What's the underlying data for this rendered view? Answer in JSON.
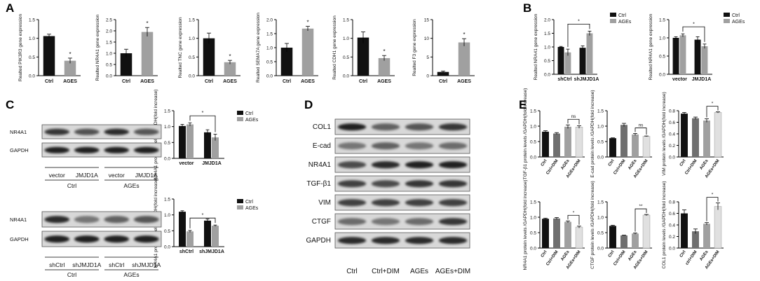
{
  "figure": {
    "panel_labels": [
      "A",
      "B",
      "C",
      "D",
      "E"
    ],
    "colors": {
      "ctrl": "#111111",
      "ages": "#a0a0a0",
      "ctrl_dim": "#6f6f6f",
      "ages_dim": "#e0e0e0"
    }
  },
  "chart_data": [
    {
      "id": "A1",
      "panel": "A",
      "type": "bar",
      "categories": [
        "Ctrl",
        "AGES"
      ],
      "values": [
        1.06,
        0.4
      ],
      "errors": [
        0.05,
        0.07
      ],
      "colors": [
        "#111111",
        "#a0a0a0"
      ],
      "ylabel": "Realted PIK3R3 gene expression",
      "ylim": [
        0,
        1.5
      ],
      "yticks": [
        0.0,
        0.5,
        1.0,
        1.5
      ],
      "sig": [
        {
          "at": 1,
          "text": "*"
        }
      ]
    },
    {
      "id": "A2",
      "panel": "A",
      "type": "bar",
      "categories": [
        "Ctrl",
        "AGES"
      ],
      "values": [
        1.0,
        1.95
      ],
      "errors": [
        0.18,
        0.2
      ],
      "colors": [
        "#111111",
        "#a0a0a0"
      ],
      "ylabel": "Realted NR4A1 gene expression",
      "ylim": [
        0,
        2.5
      ],
      "yticks": [
        0.0,
        0.5,
        1.0,
        1.5,
        2.0,
        2.5
      ],
      "sig": [
        {
          "at": 1,
          "text": "*"
        }
      ]
    },
    {
      "id": "A3",
      "panel": "A",
      "type": "bar",
      "categories": [
        "Ctrl",
        "AGES"
      ],
      "values": [
        1.0,
        0.36
      ],
      "errors": [
        0.14,
        0.05
      ],
      "colors": [
        "#111111",
        "#a0a0a0"
      ],
      "ylabel": "Realted TNC gene expression",
      "ylim": [
        0,
        1.5
      ],
      "yticks": [
        0.0,
        0.5,
        1.0,
        1.5
      ],
      "sig": [
        {
          "at": 1,
          "text": "*"
        }
      ]
    },
    {
      "id": "A4",
      "panel": "A",
      "type": "bar",
      "categories": [
        "Ctrl",
        "AGES"
      ],
      "values": [
        1.0,
        1.68
      ],
      "errors": [
        0.15,
        0.08
      ],
      "colors": [
        "#111111",
        "#a0a0a0"
      ],
      "ylabel": "Realted SEMA7A gene expression",
      "ylim": [
        0,
        2.0
      ],
      "yticks": [
        0.0,
        0.5,
        1.0,
        1.5,
        2.0
      ],
      "sig": [
        {
          "at": 1,
          "text": "*"
        }
      ]
    },
    {
      "id": "A5",
      "panel": "A",
      "type": "bar",
      "categories": [
        "Ctrl",
        "AGES"
      ],
      "values": [
        1.02,
        0.47
      ],
      "errors": [
        0.15,
        0.07
      ],
      "colors": [
        "#111111",
        "#a0a0a0"
      ],
      "ylabel": "Realted CDH1 gene expression",
      "ylim": [
        0,
        1.5
      ],
      "yticks": [
        0.0,
        0.5,
        1.0,
        1.5
      ],
      "sig": [
        {
          "at": 1,
          "text": "*"
        }
      ]
    },
    {
      "id": "A6",
      "panel": "A",
      "type": "bar",
      "categories": [
        "Ctrl",
        "AGES"
      ],
      "values": [
        1.0,
        8.9
      ],
      "errors": [
        0.25,
        1.0
      ],
      "colors": [
        "#111111",
        "#a0a0a0"
      ],
      "ylabel": "Realted F3 gene expression",
      "ylim": [
        0,
        15
      ],
      "yticks": [
        0,
        5,
        10,
        15
      ],
      "sig": [
        {
          "at": 1,
          "text": "*"
        }
      ]
    },
    {
      "id": "B1",
      "panel": "B",
      "type": "bar",
      "categories": [
        "shCtrl",
        "shJMJD1A"
      ],
      "series": [
        {
          "name": "Ctrl",
          "values": [
            1.0,
            0.97
          ],
          "errors": [
            0.02,
            0.07
          ]
        },
        {
          "name": "AGEs",
          "values": [
            0.8,
            1.5
          ],
          "errors": [
            0.12,
            0.08
          ]
        }
      ],
      "ylabel": "Realted NRA41 gene expression",
      "ylim": [
        0,
        2.0
      ],
      "yticks": [
        0.0,
        0.5,
        1.0,
        1.5,
        2.0
      ],
      "legend": [
        "Ctrl",
        "AGEs"
      ],
      "brackets": [
        {
          "from": [
            0,
            1
          ],
          "to": [
            1,
            1
          ],
          "text": "*"
        }
      ]
    },
    {
      "id": "B2",
      "panel": "B",
      "type": "bar",
      "categories": [
        "vector",
        "JMJD1A"
      ],
      "series": [
        {
          "name": "Ctrl",
          "values": [
            1.0,
            0.95
          ],
          "errors": [
            0.03,
            0.08
          ]
        },
        {
          "name": "AGEs",
          "values": [
            1.07,
            0.77
          ],
          "errors": [
            0.04,
            0.06
          ]
        }
      ],
      "ylabel": "Realted NR4A1 gene expression",
      "ylim": [
        0,
        1.5
      ],
      "yticks": [
        0.0,
        0.5,
        1.0,
        1.5
      ],
      "legend": [
        "Ctrl",
        "AGEs"
      ],
      "brackets": [
        {
          "from": [
            0,
            1
          ],
          "to": [
            1,
            1
          ],
          "text": "*"
        }
      ]
    },
    {
      "id": "C1",
      "panel": "C",
      "type": "bar",
      "categories": [
        "vector",
        "JMJD1A"
      ],
      "series": [
        {
          "name": "Ctrl",
          "values": [
            1.02,
            0.82
          ],
          "errors": [
            0.05,
            0.08
          ]
        },
        {
          "name": "AGEs",
          "values": [
            1.07,
            0.66
          ],
          "errors": [
            0.05,
            0.1
          ]
        }
      ],
      "ylabel": "NR4A1 protein levels /GAPDH(fold increase)",
      "ylim": [
        0,
        1.5
      ],
      "yticks": [
        0.0,
        0.5,
        1.0,
        1.5
      ],
      "legend": [
        "Ctrl",
        "AGEs"
      ],
      "brackets": [
        {
          "from": [
            0,
            1
          ],
          "to": [
            1,
            1
          ],
          "text": "*"
        }
      ]
    },
    {
      "id": "C2",
      "panel": "C",
      "type": "bar",
      "categories": [
        "shCtrl",
        "shJMJD1A"
      ],
      "series": [
        {
          "name": "Ctrl",
          "values": [
            1.1,
            0.82
          ],
          "errors": [
            0.03,
            0.05
          ]
        },
        {
          "name": "AGEs",
          "values": [
            0.48,
            0.66
          ],
          "errors": [
            0.03,
            0.02
          ]
        }
      ],
      "ylabel": "NR4A1 protein levels /GAPDH(fold increase)",
      "ylim": [
        0,
        1.5
      ],
      "yticks": [
        0.0,
        0.5,
        1.0,
        1.5
      ],
      "legend": [
        "Ctrl",
        "AGEs"
      ],
      "brackets": [
        {
          "from": [
            0,
            1
          ],
          "to": [
            1,
            1
          ],
          "text": "*"
        }
      ]
    },
    {
      "id": "E1",
      "panel": "E",
      "type": "bar",
      "categories": [
        "Ctrl",
        "Ctrl+DIM",
        "AGEs",
        "AGEs+DIM"
      ],
      "values": [
        0.82,
        0.76,
        0.98,
        0.97
      ],
      "errors": [
        0.03,
        0.03,
        0.06,
        0.04
      ],
      "colors": [
        "#111111",
        "#6f6f6f",
        "#a0a0a0",
        "#e0e0e0"
      ],
      "ylabel": "TGF-β1 protein levels /GAPDH(fold increase)",
      "ylim": [
        0,
        1.5
      ],
      "yticks": [
        0.0,
        0.5,
        1.0,
        1.5
      ],
      "brackets": [
        {
          "from": 2,
          "to": 3,
          "text": "ns"
        }
      ]
    },
    {
      "id": "E2",
      "panel": "E",
      "type": "bar",
      "categories": [
        "Ctrl",
        "Ctrl+DIM",
        "AGEs",
        "AGEs+DIM"
      ],
      "values": [
        0.61,
        1.04,
        0.73,
        0.67
      ],
      "errors": [
        0.01,
        0.05,
        0.03,
        0.01
      ],
      "colors": [
        "#111111",
        "#6f6f6f",
        "#a0a0a0",
        "#e0e0e0"
      ],
      "ylabel": "E-cad protein levels /GAPDH(fold increase)",
      "ylim": [
        0,
        1.5
      ],
      "yticks": [
        0.0,
        0.5,
        1.0,
        1.5
      ],
      "brackets": [
        {
          "from": 2,
          "to": 3,
          "text": "ns"
        }
      ]
    },
    {
      "id": "E3",
      "panel": "E",
      "type": "bar",
      "categories": [
        "Ctrl",
        "Ctrl+DIM",
        "AGEs",
        "AGEs+DIM"
      ],
      "values": [
        0.75,
        0.67,
        0.63,
        0.77
      ],
      "errors": [
        0.02,
        0.02,
        0.03,
        0.01
      ],
      "colors": [
        "#111111",
        "#6f6f6f",
        "#a0a0a0",
        "#e0e0e0"
      ],
      "ylabel": "VIM protein levels /GAPDH(fold increase)",
      "ylim": [
        0,
        0.8
      ],
      "yticks": [
        0.0,
        0.2,
        0.4,
        0.6,
        0.8
      ],
      "brackets": [
        {
          "from": 2,
          "to": 3,
          "text": "*"
        }
      ]
    },
    {
      "id": "E4",
      "panel": "E",
      "type": "bar",
      "categories": [
        "Ctrl",
        "Ctrl+DIM",
        "AGEs",
        "AGEs+DIM"
      ],
      "values": [
        0.95,
        0.96,
        0.85,
        0.68
      ],
      "errors": [
        0.02,
        0.03,
        0.03,
        0.03
      ],
      "colors": [
        "#111111",
        "#6f6f6f",
        "#a0a0a0",
        "#e0e0e0"
      ],
      "ylabel": "NR4A1 protein levels /GAPDH(fold increase)",
      "ylim": [
        0,
        1.5
      ],
      "yticks": [
        0.0,
        0.5,
        1.0,
        1.5
      ],
      "brackets": [
        {
          "from": 2,
          "to": 3,
          "text": "*"
        }
      ]
    },
    {
      "id": "E5",
      "panel": "E",
      "type": "bar",
      "categories": [
        "Ctrl",
        "Ctrl+DIM",
        "AGEs",
        "AGEs+DIM"
      ],
      "values": [
        0.72,
        0.41,
        0.47,
        1.07
      ],
      "errors": [
        0.02,
        0.01,
        0.02,
        0.02
      ],
      "colors": [
        "#111111",
        "#6f6f6f",
        "#a0a0a0",
        "#e0e0e0"
      ],
      "ylabel": "CTGF protein levels /GAPDH(fold increase)",
      "ylim": [
        0,
        1.5
      ],
      "yticks": [
        0.0,
        0.5,
        1.0,
        1.5
      ],
      "brackets": [
        {
          "from": 2,
          "to": 3,
          "text": "**"
        }
      ]
    },
    {
      "id": "E6",
      "panel": "E",
      "type": "bar",
      "categories": [
        "Ctrl",
        "ctrl+DIM",
        "AGEs",
        "AGEs+DIM"
      ],
      "values": [
        0.6,
        0.29,
        0.42,
        0.72
      ],
      "errors": [
        0.06,
        0.04,
        0.02,
        0.06
      ],
      "colors": [
        "#111111",
        "#6f6f6f",
        "#a0a0a0",
        "#e0e0e0"
      ],
      "ylabel": "COL1 protein levels /GAPDH(fold increase)",
      "ylim": [
        0,
        0.8
      ],
      "yticks": [
        0.0,
        0.2,
        0.4,
        0.6,
        0.8
      ],
      "brackets": [
        {
          "from": 2,
          "to": 3,
          "text": "*"
        }
      ]
    }
  ],
  "blots": [
    {
      "id": "C-top",
      "panel": "C",
      "rows": [
        "NR4A1",
        "GAPDH"
      ],
      "lanes": [
        "vector",
        "JMJD1A",
        "vector",
        "JMJD1A"
      ],
      "groups": [
        "Ctrl",
        "AGEs"
      ]
    },
    {
      "id": "C-bottom",
      "panel": "C",
      "rows": [
        "NR4A1",
        "GAPDH"
      ],
      "lanes": [
        "shCtrl",
        "shJMJD1A",
        "shCtrl",
        "shJMJD1A"
      ],
      "groups": [
        "Ctrl",
        "AGEs"
      ]
    },
    {
      "id": "D",
      "panel": "D",
      "rows": [
        "COL1",
        "E-cad",
        "NR4A1",
        "TGF-β1",
        "VIM",
        "CTGF",
        "GAPDH"
      ],
      "lanes": [
        "Ctrl",
        "Ctrl+DIM",
        "AGEs",
        "AGEs+DIM"
      ]
    }
  ]
}
